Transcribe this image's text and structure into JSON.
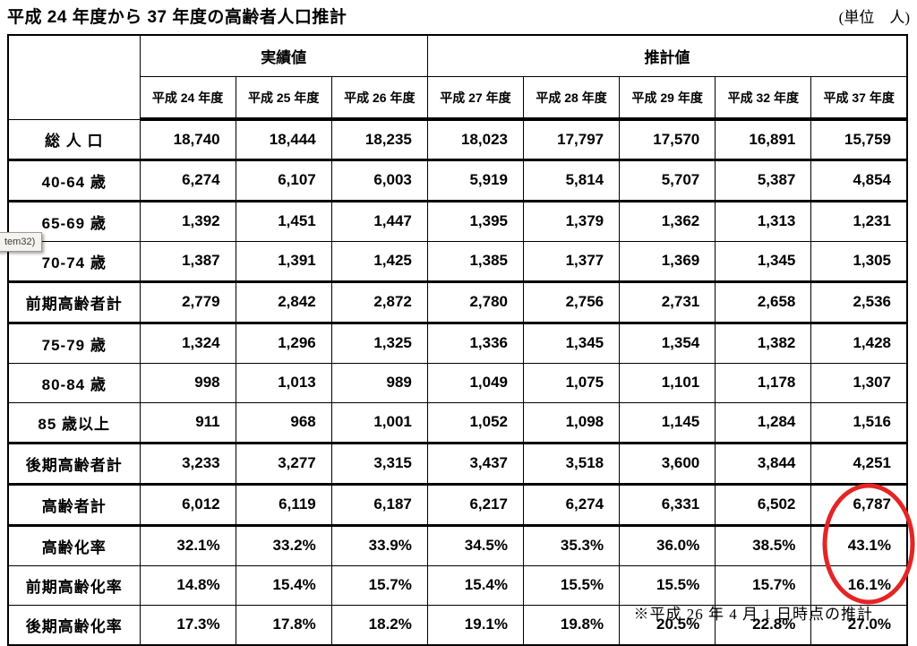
{
  "title": "平成 24 年度から 37 年度の高齢者人口推計",
  "unit_note": "(単位　人)",
  "footnote": "※平成 26 年 4 月 1 日時点の推計",
  "tooltip": {
    "text": "tem32)"
  },
  "annotation": {
    "shape": "red-ellipse",
    "color": "#e42525",
    "highlights": [
      "43.1%",
      "16.1%",
      "27.0%"
    ]
  },
  "table": {
    "corner_label": "",
    "groups": [
      {
        "label": "実績値",
        "span": "3"
      },
      {
        "label": "推計値",
        "span": "5"
      }
    ],
    "year_headers": [
      "平成 24 年度",
      "平成 25 年度",
      "平成 26 年度",
      "平成 27 年度",
      "平成 28 年度",
      "平成 29 年度",
      "平成 32 年度",
      "平成 37 年度"
    ],
    "rows": [
      {
        "label": "総 人 口",
        "values": [
          "18,740",
          "18,444",
          "18,235",
          "18,023",
          "17,797",
          "17,570",
          "16,891",
          "15,759"
        ]
      },
      {
        "label": "40-64 歳",
        "values": [
          "6,274",
          "6,107",
          "6,003",
          "5,919",
          "5,814",
          "5,707",
          "5,387",
          "4,854"
        ]
      },
      {
        "label": "65-69 歳",
        "values": [
          "1,392",
          "1,451",
          "1,447",
          "1,395",
          "1,379",
          "1,362",
          "1,313",
          "1,231"
        ]
      },
      {
        "label": "70-74 歳",
        "values": [
          "1,387",
          "1,391",
          "1,425",
          "1,385",
          "1,377",
          "1,369",
          "1,345",
          "1,305"
        ]
      },
      {
        "label": "前期高齢者計",
        "values": [
          "2,779",
          "2,842",
          "2,872",
          "2,780",
          "2,756",
          "2,731",
          "2,658",
          "2,536"
        ]
      },
      {
        "label": "75-79 歳",
        "values": [
          "1,324",
          "1,296",
          "1,325",
          "1,336",
          "1,345",
          "1,354",
          "1,382",
          "1,428"
        ]
      },
      {
        "label": "80-84 歳",
        "values": [
          "998",
          "1,013",
          "989",
          "1,049",
          "1,075",
          "1,101",
          "1,178",
          "1,307"
        ]
      },
      {
        "label": "85 歳以上",
        "values": [
          "911",
          "968",
          "1,001",
          "1,052",
          "1,098",
          "1,145",
          "1,284",
          "1,516"
        ]
      },
      {
        "label": "後期高齢者計",
        "values": [
          "3,233",
          "3,277",
          "3,315",
          "3,437",
          "3,518",
          "3,600",
          "3,844",
          "4,251"
        ]
      },
      {
        "label": "高齢者計",
        "values": [
          "6,012",
          "6,119",
          "6,187",
          "6,217",
          "6,274",
          "6,331",
          "6,502",
          "6,787"
        ]
      },
      {
        "label": "高齢化率",
        "values": [
          "32.1%",
          "33.2%",
          "33.9%",
          "34.5%",
          "35.3%",
          "36.0%",
          "38.5%",
          "43.1%"
        ]
      },
      {
        "label": "前期高齢化率",
        "values": [
          "14.8%",
          "15.4%",
          "15.7%",
          "15.4%",
          "15.5%",
          "15.5%",
          "15.7%",
          "16.1%"
        ]
      },
      {
        "label": "後期高齢化率",
        "values": [
          "17.3%",
          "17.8%",
          "18.2%",
          "19.1%",
          "19.8%",
          "20.5%",
          "22.8%",
          "27.0%"
        ]
      }
    ]
  }
}
